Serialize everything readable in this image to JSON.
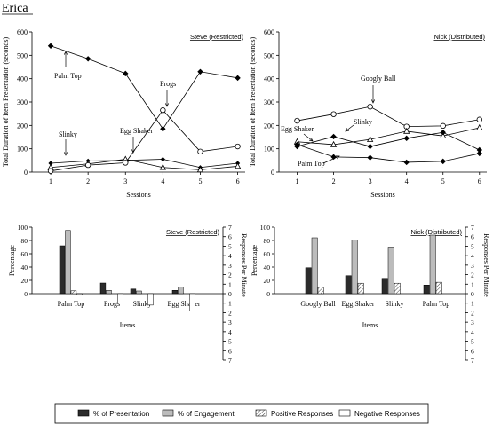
{
  "page_title": "Erica",
  "legend": {
    "items": [
      {
        "label": "% of Presentation",
        "key": "presentation"
      },
      {
        "label": "% of Engagement",
        "key": "engagement"
      },
      {
        "label": "Positive Responses",
        "key": "positive"
      },
      {
        "label": "Negative Responses",
        "key": "negative"
      }
    ]
  },
  "colors": {
    "presentation": "#2b2b2b",
    "engagement": "#bcbcbc",
    "positive": "#ffffff",
    "negative": "#ffffff",
    "axis": "#000000"
  },
  "chart_data": [
    {
      "id": "steve_line",
      "type": "line",
      "title": "Steve (Restricted)",
      "xlabel": "Sessions",
      "ylabel": "Total Duration of Item Presentation (seconds)",
      "x": [
        1,
        2,
        3,
        4,
        5,
        6
      ],
      "xlim": [
        0.5,
        6.2
      ],
      "ylim": [
        0,
        600
      ],
      "yticks": [
        0,
        100,
        200,
        300,
        400,
        500,
        600
      ],
      "grid": false,
      "series": [
        {
          "name": "Palm Top",
          "marker": "diamond",
          "values": [
            540,
            485,
            422,
            185,
            430,
            403
          ]
        },
        {
          "name": "Slinky",
          "marker": "diamond-small",
          "values": [
            38,
            48,
            50,
            55,
            20,
            38
          ]
        },
        {
          "name": "Egg Shaker",
          "marker": "triangle",
          "values": [
            20,
            35,
            55,
            20,
            10,
            25
          ]
        },
        {
          "name": "Frogs",
          "marker": "circle",
          "values": [
            5,
            30,
            40,
            265,
            88,
            110
          ]
        }
      ],
      "annotations": [
        {
          "text": "Palm Top",
          "series": "Palm Top"
        },
        {
          "text": "Slinky",
          "series": "Slinky"
        },
        {
          "text": "Egg Shaker",
          "series": "Egg Shaker"
        },
        {
          "text": "Frogs",
          "series": "Frogs"
        }
      ]
    },
    {
      "id": "nick_line",
      "type": "line",
      "title": "Nick (Distributed)",
      "xlabel": "Sessions",
      "ylabel": "Total Duration of Item Presentation (seconds)",
      "x": [
        1,
        2,
        3,
        4,
        5,
        6
      ],
      "xlim": [
        0.5,
        6.2
      ],
      "ylim": [
        0,
        600
      ],
      "yticks": [
        0,
        100,
        200,
        300,
        400,
        500,
        600
      ],
      "grid": false,
      "series": [
        {
          "name": "Googly Ball",
          "marker": "circle",
          "values": [
            220,
            248,
            280,
            195,
            198,
            225
          ]
        },
        {
          "name": "Egg Shaker",
          "marker": "triangle",
          "values": [
            130,
            118,
            140,
            175,
            155,
            190
          ]
        },
        {
          "name": "Slinky",
          "marker": "diamond",
          "values": [
            110,
            152,
            110,
            145,
            170,
            95
          ]
        },
        {
          "name": "Palm Top",
          "marker": "diamond",
          "values": [
            118,
            65,
            62,
            42,
            46,
            80
          ]
        }
      ],
      "annotations": [
        {
          "text": "Googly Ball",
          "series": "Googly Ball"
        },
        {
          "text": "Egg Shaker",
          "series": "Egg Shaker"
        },
        {
          "text": "Slinky",
          "series": "Slinky"
        },
        {
          "text": "Palm Top",
          "series": "Palm Top"
        }
      ]
    },
    {
      "id": "steve_bar",
      "type": "bar",
      "title": "Steve (Restricted)",
      "xlabel": "Items",
      "ylabel": "Percentage",
      "y2label": "Responses Per Minute",
      "categories": [
        "Palm Top",
        "Frogs",
        "Slinky",
        "Egg Shaker"
      ],
      "ylim": [
        0,
        100
      ],
      "yticks": [
        0,
        20,
        40,
        60,
        80,
        100
      ],
      "y2ticks": [
        "7",
        "6",
        "5",
        "4",
        "3",
        "2",
        "1",
        "0",
        "1",
        "2",
        "3",
        "4",
        "5",
        "6",
        "7"
      ],
      "y2lim": [
        -7,
        7
      ],
      "series": [
        {
          "key": "presentation",
          "values": [
            72,
            16,
            7,
            5
          ]
        },
        {
          "key": "engagement",
          "values": [
            95,
            5,
            4,
            10
          ]
        },
        {
          "key": "positive",
          "values": [
            0.3,
            0,
            0,
            0
          ]
        },
        {
          "key": "negative",
          "values": [
            -0.1,
            -1.0,
            -1.2,
            -1.8
          ]
        }
      ]
    },
    {
      "id": "nick_bar",
      "type": "bar",
      "title": "Nick (Distributed)",
      "xlabel": "Items",
      "ylabel": "Percentage",
      "y2label": "Responses Per Minute",
      "categories": [
        "Googly Ball",
        "Egg Shaker",
        "Slinky",
        "Palm Top"
      ],
      "ylim": [
        0,
        100
      ],
      "yticks": [
        0,
        20,
        40,
        60,
        80,
        100
      ],
      "y2ticks": [
        "7",
        "6",
        "5",
        "4",
        "3",
        "2",
        "1",
        "0",
        "1",
        "2",
        "3",
        "4",
        "5",
        "6",
        "7"
      ],
      "y2lim": [
        -7,
        7
      ],
      "series": [
        {
          "key": "presentation",
          "values": [
            39,
            27,
            23,
            13
          ]
        },
        {
          "key": "engagement",
          "values": [
            84,
            81,
            70,
            88
          ]
        },
        {
          "key": "positive",
          "values": [
            0.7,
            1.1,
            1.1,
            1.2
          ]
        },
        {
          "key": "negative",
          "values": [
            0,
            0,
            0,
            0
          ]
        }
      ]
    }
  ]
}
